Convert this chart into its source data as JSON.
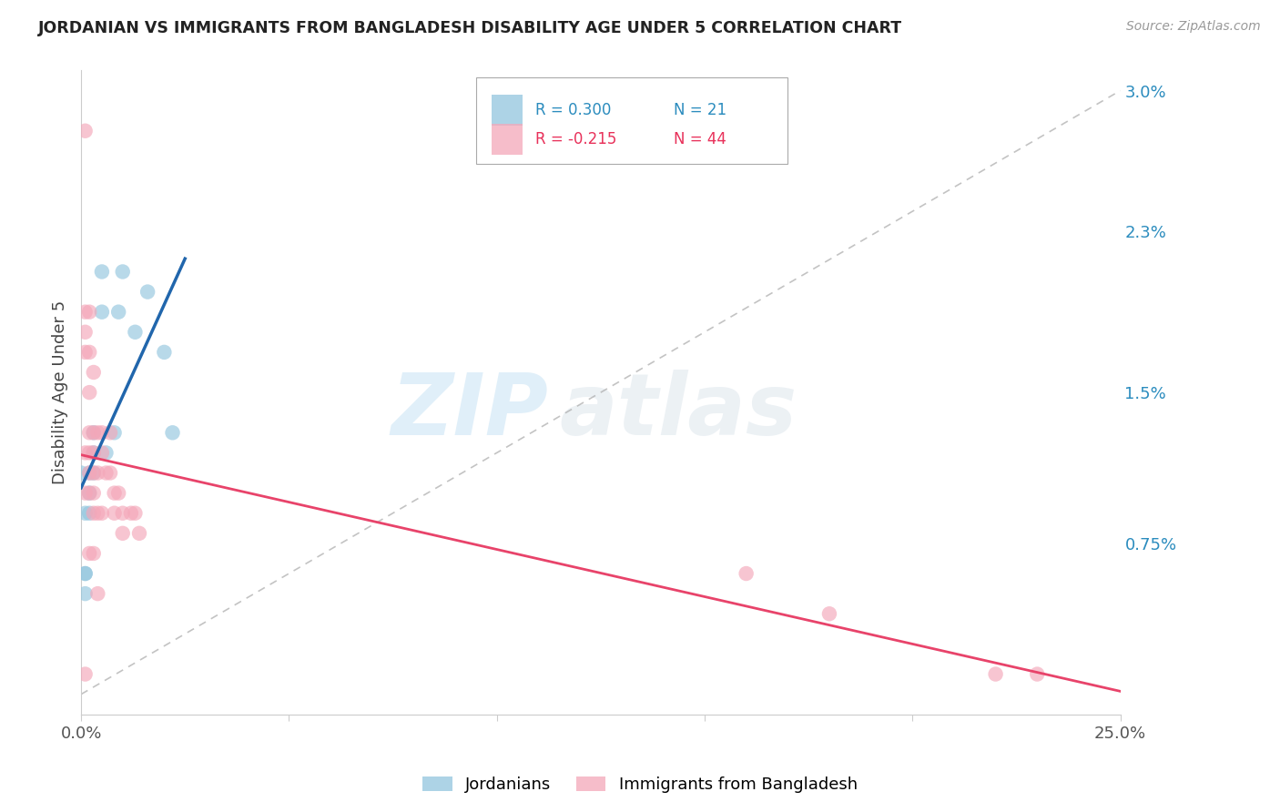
{
  "title": "JORDANIAN VS IMMIGRANTS FROM BANGLADESH DISABILITY AGE UNDER 5 CORRELATION CHART",
  "source": "Source: ZipAtlas.com",
  "ylabel": "Disability Age Under 5",
  "watermark": "ZIPatlas",
  "legend_r1": "R = 0.300",
  "legend_n1": "N = 21",
  "legend_r2": "R = -0.215",
  "legend_n2": "N = 44",
  "legend_label1": "Jordanians",
  "legend_label2": "Immigrants from Bangladesh",
  "blue_color": "#92c5de",
  "pink_color": "#f4a7b9",
  "blue_line_color": "#2166ac",
  "pink_line_color": "#e8436a",
  "blue_r_color": "#2b8cbe",
  "pink_r_color": "#e8315a",
  "right_ytick_vals": [
    0.0,
    0.0075,
    0.015,
    0.023,
    0.03
  ],
  "right_yticklabels": [
    "",
    "0.75%",
    "1.5%",
    "2.3%",
    "3.0%"
  ],
  "xlim": [
    0.0,
    0.25
  ],
  "ylim": [
    -0.001,
    0.031
  ],
  "blue_scatter_x": [
    0.005,
    0.005,
    0.009,
    0.01,
    0.013,
    0.016,
    0.02,
    0.022,
    0.008,
    0.006,
    0.003,
    0.003,
    0.003,
    0.002,
    0.002,
    0.002,
    0.001,
    0.001,
    0.001,
    0.001,
    0.0
  ],
  "blue_scatter_y": [
    0.019,
    0.021,
    0.019,
    0.021,
    0.018,
    0.02,
    0.017,
    0.013,
    0.013,
    0.012,
    0.013,
    0.012,
    0.011,
    0.011,
    0.01,
    0.009,
    0.009,
    0.006,
    0.006,
    0.005,
    0.011
  ],
  "pink_scatter_x": [
    0.001,
    0.001,
    0.001,
    0.001,
    0.001,
    0.001,
    0.002,
    0.002,
    0.002,
    0.002,
    0.002,
    0.002,
    0.002,
    0.003,
    0.003,
    0.003,
    0.003,
    0.003,
    0.003,
    0.004,
    0.004,
    0.004,
    0.005,
    0.005,
    0.006,
    0.007,
    0.007,
    0.008,
    0.008,
    0.009,
    0.01,
    0.01,
    0.012,
    0.013,
    0.014,
    0.002,
    0.003,
    0.005,
    0.16,
    0.18,
    0.22,
    0.23,
    0.001,
    0.004
  ],
  "pink_scatter_y": [
    0.028,
    0.019,
    0.018,
    0.017,
    0.012,
    0.01,
    0.019,
    0.017,
    0.015,
    0.013,
    0.012,
    0.011,
    0.01,
    0.016,
    0.013,
    0.012,
    0.011,
    0.01,
    0.009,
    0.013,
    0.011,
    0.009,
    0.013,
    0.012,
    0.011,
    0.013,
    0.011,
    0.01,
    0.009,
    0.01,
    0.009,
    0.008,
    0.009,
    0.009,
    0.008,
    0.007,
    0.007,
    0.009,
    0.006,
    0.004,
    0.001,
    0.001,
    0.001,
    0.005
  ],
  "figsize": [
    14.06,
    8.92
  ],
  "dpi": 100,
  "grid_color": "#dddddd",
  "spine_color": "#cccccc",
  "title_color": "#222222",
  "source_color": "#999999",
  "tick_color": "#555555",
  "watermark_color": "#cce5f5",
  "watermark_alpha": 0.6
}
